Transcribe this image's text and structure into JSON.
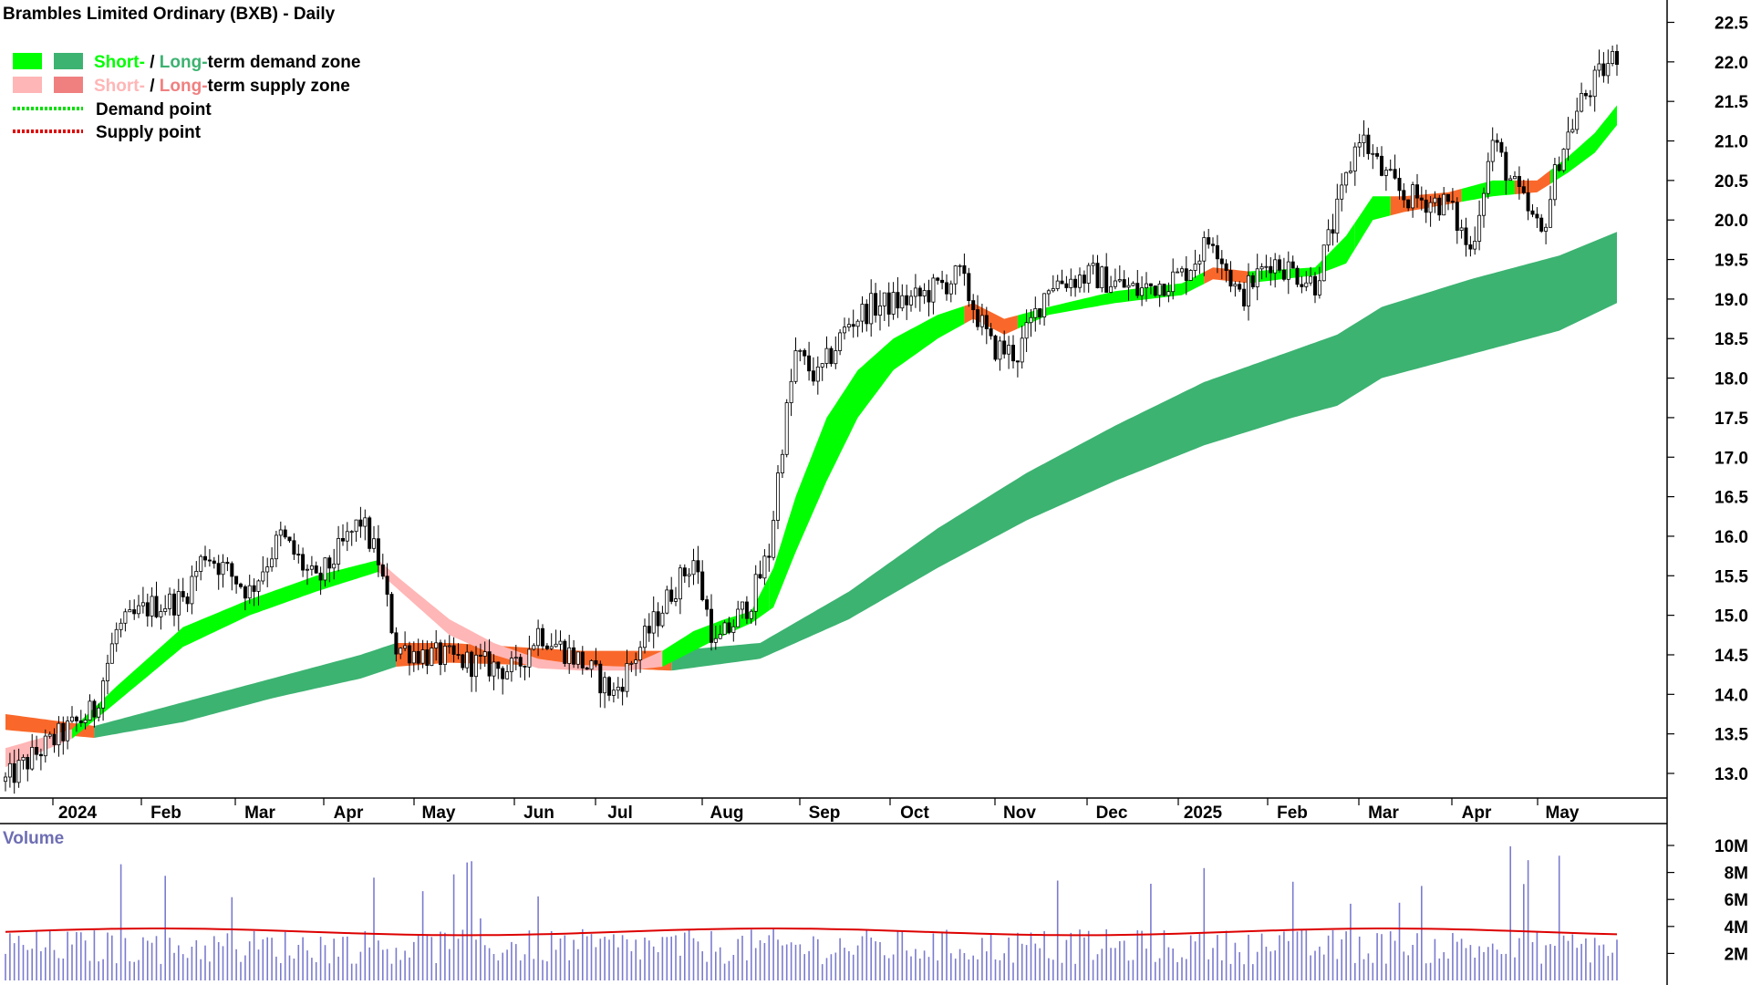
{
  "chart_data": {
    "type": "candlestick",
    "title": "Brambles Limited Ordinary (BXB) - Daily",
    "legend": [
      {
        "light": "#00ff00",
        "dark": "#3cb371",
        "short": "Short-",
        "sep": " / ",
        "long": "Long-",
        "rest": "term demand zone"
      },
      {
        "light": "#ffb6b6",
        "dark": "#f08080",
        "short": "Short-",
        "sep": " / ",
        "long": "Long-",
        "rest": "term supply zone"
      }
    ],
    "legend_lines": [
      {
        "color": "#00dd00",
        "label": "Demand point"
      },
      {
        "color": "#dd0000",
        "label": "Supply point"
      }
    ],
    "y_ticks": [
      "13.0",
      "13.5",
      "14.0",
      "14.5",
      "15.0",
      "15.5",
      "16.0",
      "16.5",
      "17.0",
      "17.5",
      "18.0",
      "18.5",
      "19.0",
      "19.5",
      "20.0",
      "20.5",
      "21.0",
      "21.5",
      "22.0",
      "22.5"
    ],
    "ylim": [
      12.6,
      22.9
    ],
    "x_ticks": [
      "2024",
      "Feb",
      "Mar",
      "Apr",
      "May",
      "Jun",
      "Jul",
      "Aug",
      "Sep",
      "Oct",
      "Nov",
      "Dec",
      "2025",
      "Feb",
      "Mar",
      "Apr",
      "May"
    ],
    "price_anchors": [
      [
        0,
        12.9
      ],
      [
        8,
        13.3
      ],
      [
        20,
        13.8
      ],
      [
        25,
        14.8
      ],
      [
        32,
        15.1
      ],
      [
        40,
        15.2
      ],
      [
        45,
        15.8
      ],
      [
        55,
        15.3
      ],
      [
        62,
        16.0
      ],
      [
        70,
        15.4
      ],
      [
        75,
        15.8
      ],
      [
        80,
        16.2
      ],
      [
        84,
        15.7
      ],
      [
        88,
        14.6
      ],
      [
        95,
        14.5
      ],
      [
        105,
        14.4
      ],
      [
        115,
        14.3
      ],
      [
        120,
        14.8
      ],
      [
        130,
        14.4
      ],
      [
        137,
        14.0
      ],
      [
        142,
        14.5
      ],
      [
        150,
        15.3
      ],
      [
        155,
        15.7
      ],
      [
        160,
        14.6
      ],
      [
        168,
        15.2
      ],
      [
        172,
        15.8
      ],
      [
        175,
        17.2
      ],
      [
        178,
        18.3
      ],
      [
        183,
        18.0
      ],
      [
        190,
        18.7
      ],
      [
        195,
        18.9
      ],
      [
        205,
        19.0
      ],
      [
        215,
        19.3
      ],
      [
        222,
        18.4
      ],
      [
        228,
        18.3
      ],
      [
        235,
        19.2
      ],
      [
        245,
        19.3
      ],
      [
        255,
        19.1
      ],
      [
        265,
        19.3
      ],
      [
        272,
        19.8
      ],
      [
        278,
        19.0
      ],
      [
        285,
        19.5
      ],
      [
        295,
        19.2
      ],
      [
        300,
        20.1
      ],
      [
        305,
        21.1
      ],
      [
        310,
        20.6
      ],
      [
        315,
        20.3
      ],
      [
        325,
        20.2
      ],
      [
        330,
        19.6
      ],
      [
        335,
        21.0
      ],
      [
        340,
        20.4
      ],
      [
        346,
        19.8
      ],
      [
        350,
        20.8
      ],
      [
        355,
        21.5
      ],
      [
        360,
        21.9
      ],
      [
        363,
        22.1
      ]
    ],
    "short_zone_anchors": [
      [
        0,
        13.32,
        13.08
      ],
      [
        15,
        13.56,
        13.44
      ],
      [
        25,
        14.1,
        13.9
      ],
      [
        40,
        14.85,
        14.6
      ],
      [
        55,
        15.2,
        15.0
      ],
      [
        70,
        15.5,
        15.3
      ],
      [
        84,
        15.7,
        15.55
      ],
      [
        88,
        15.5,
        15.35
      ],
      [
        100,
        14.95,
        14.75
      ],
      [
        110,
        14.65,
        14.5
      ],
      [
        120,
        14.45,
        14.33
      ],
      [
        130,
        14.37,
        14.3
      ],
      [
        140,
        14.35,
        14.3
      ],
      [
        148,
        14.55,
        14.35
      ],
      [
        155,
        14.8,
        14.55
      ],
      [
        162,
        14.95,
        14.75
      ],
      [
        168,
        15.05,
        14.9
      ],
      [
        173,
        15.6,
        15.1
      ],
      [
        178,
        16.5,
        15.8
      ],
      [
        185,
        17.5,
        16.7
      ],
      [
        192,
        18.1,
        17.5
      ],
      [
        200,
        18.5,
        18.1
      ],
      [
        210,
        18.8,
        18.5
      ],
      [
        218,
        18.95,
        18.75
      ],
      [
        225,
        18.75,
        18.55
      ],
      [
        235,
        18.9,
        18.8
      ],
      [
        250,
        19.1,
        18.95
      ],
      [
        265,
        19.2,
        19.05
      ],
      [
        272,
        19.4,
        19.25
      ],
      [
        280,
        19.35,
        19.2
      ],
      [
        295,
        19.4,
        19.3
      ],
      [
        302,
        19.8,
        19.45
      ],
      [
        308,
        20.3,
        20.0
      ],
      [
        315,
        20.3,
        20.1
      ],
      [
        325,
        20.35,
        20.2
      ],
      [
        335,
        20.5,
        20.3
      ],
      [
        345,
        20.5,
        20.35
      ],
      [
        352,
        20.8,
        20.6
      ],
      [
        358,
        21.1,
        20.85
      ],
      [
        363,
        21.45,
        21.2
      ]
    ],
    "long_zone_anchors": [
      [
        0,
        13.75,
        13.55
      ],
      [
        20,
        13.6,
        13.45
      ],
      [
        40,
        13.9,
        13.65
      ],
      [
        60,
        14.2,
        13.95
      ],
      [
        80,
        14.5,
        14.2
      ],
      [
        88,
        14.65,
        14.35
      ],
      [
        100,
        14.65,
        14.4
      ],
      [
        130,
        14.55,
        14.35
      ],
      [
        150,
        14.55,
        14.3
      ],
      [
        170,
        14.65,
        14.45
      ],
      [
        190,
        15.3,
        14.95
      ],
      [
        210,
        16.1,
        15.6
      ],
      [
        230,
        16.8,
        16.2
      ],
      [
        250,
        17.4,
        16.7
      ],
      [
        270,
        17.95,
        17.15
      ],
      [
        290,
        18.35,
        17.5
      ],
      [
        300,
        18.55,
        17.65
      ],
      [
        310,
        18.9,
        18.0
      ],
      [
        330,
        19.25,
        18.3
      ],
      [
        350,
        19.55,
        18.6
      ],
      [
        363,
        19.85,
        18.95
      ]
    ],
    "volume_ticks": [
      "10M",
      "8M",
      "6M",
      "4M",
      "2M"
    ],
    "volume_ylim": [
      0,
      10.5
    ],
    "volume_avg": 3.6,
    "volume_label": "Volume"
  }
}
